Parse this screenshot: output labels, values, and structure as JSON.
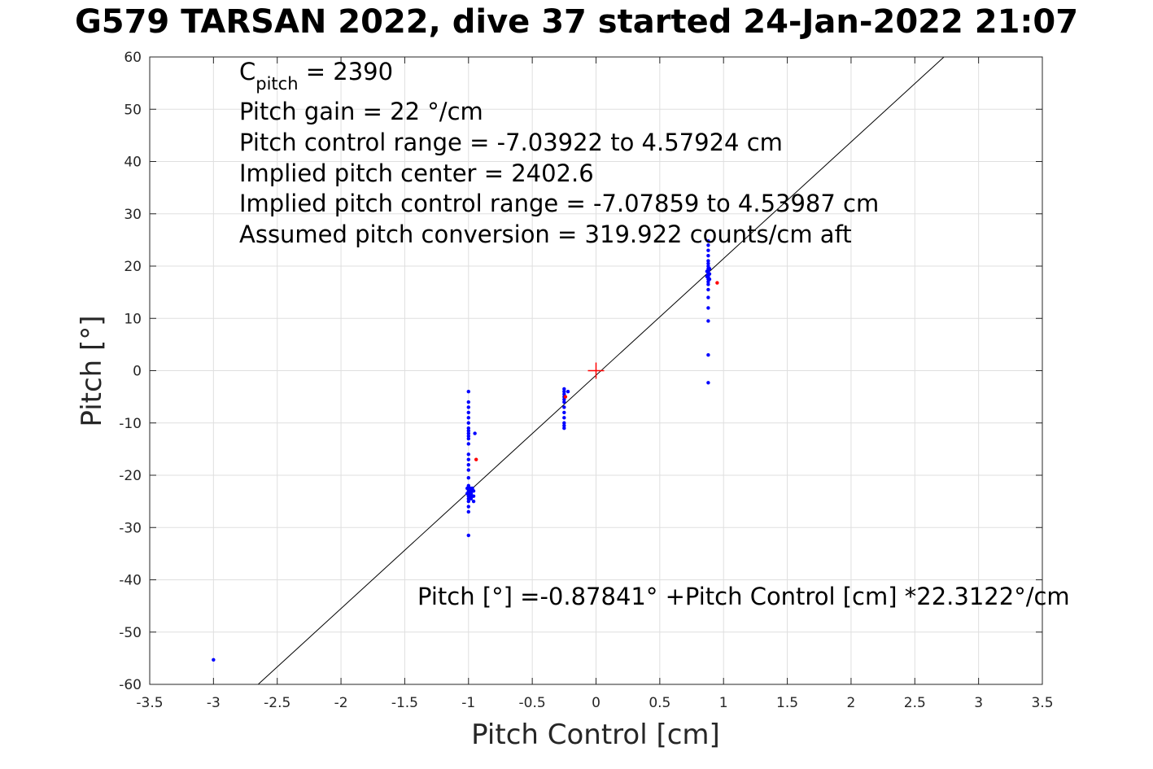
{
  "chart_data": {
    "type": "scatter",
    "title": "G579 TARSAN 2022, dive 37 started 24-Jan-2022 21:07",
    "xlabel": "Pitch Control [cm]",
    "ylabel": "Pitch [°]",
    "xlim": [
      -3.5,
      3.5
    ],
    "ylim": [
      -60,
      60
    ],
    "xticks": [
      -3.5,
      -3,
      -2.5,
      -2,
      -1.5,
      -1,
      -0.5,
      0,
      0.5,
      1,
      1.5,
      2,
      2.5,
      3,
      3.5
    ],
    "xtick_labels": [
      "-3.5",
      "-3",
      "-2.5",
      "-2",
      "-1.5",
      "-1",
      "-0.5",
      "0",
      "0.5",
      "1",
      "1.5",
      "2",
      "2.5",
      "3",
      "3.5"
    ],
    "yticks": [
      -60,
      -50,
      -40,
      -30,
      -20,
      -10,
      0,
      10,
      20,
      30,
      40,
      50,
      60
    ],
    "ytick_labels": [
      "-60",
      "-50",
      "-40",
      "-30",
      "-20",
      "-10",
      "0",
      "10",
      "20",
      "30",
      "40",
      "50",
      "60"
    ],
    "grid": true,
    "fit_line": {
      "intercept": -0.87841,
      "slope": 22.3122
    },
    "center_marker": {
      "x": 0,
      "y": 0
    },
    "series": [
      {
        "color": "#0000ff",
        "points": [
          [
            -3.0,
            -55.3
          ],
          [
            -1.0,
            -31.5
          ],
          [
            -1.0,
            -27
          ],
          [
            -1.0,
            -26
          ],
          [
            -1.0,
            -25
          ],
          [
            -1.0,
            -24.5
          ],
          [
            -1.0,
            -24
          ],
          [
            -1.0,
            -23.5
          ],
          [
            -1.0,
            -23
          ],
          [
            -1.0,
            -22.5
          ],
          [
            -1.0,
            -22
          ],
          [
            -1.0,
            -20.5
          ],
          [
            -1.0,
            -19
          ],
          [
            -1.0,
            -18
          ],
          [
            -1.0,
            -17
          ],
          [
            -1.0,
            -16
          ],
          [
            -1.0,
            -14
          ],
          [
            -1.0,
            -13
          ],
          [
            -1.0,
            -12.5
          ],
          [
            -1.0,
            -12
          ],
          [
            -1.0,
            -11.5
          ],
          [
            -1.0,
            -11
          ],
          [
            -1.0,
            -10
          ],
          [
            -1.0,
            -9
          ],
          [
            -1.0,
            -8
          ],
          [
            -1.0,
            -7
          ],
          [
            -1.0,
            -6
          ],
          [
            -1.0,
            -4
          ],
          [
            -0.99,
            -24
          ],
          [
            -0.99,
            -23
          ],
          [
            -0.99,
            -22.5
          ],
          [
            -0.98,
            -24.5
          ],
          [
            -0.98,
            -23.5
          ],
          [
            -0.98,
            -22.5
          ],
          [
            -0.97,
            -24
          ],
          [
            -0.97,
            -23
          ],
          [
            -0.97,
            -22.5
          ],
          [
            -0.96,
            -25
          ],
          [
            -0.96,
            -24
          ],
          [
            -0.96,
            -23
          ],
          [
            -0.95,
            -12
          ],
          [
            -1.01,
            -23.5
          ],
          [
            -1.01,
            -22.5
          ],
          [
            -0.25,
            -11
          ],
          [
            -0.25,
            -10.5
          ],
          [
            -0.25,
            -10
          ],
          [
            -0.25,
            -9
          ],
          [
            -0.25,
            -8
          ],
          [
            -0.25,
            -7
          ],
          [
            -0.25,
            -6
          ],
          [
            -0.25,
            -5.5
          ],
          [
            -0.25,
            -5
          ],
          [
            -0.25,
            -4.5
          ],
          [
            -0.25,
            -4
          ],
          [
            -0.25,
            -3.5
          ],
          [
            -0.22,
            -4
          ],
          [
            0.88,
            -2.3
          ],
          [
            0.88,
            3
          ],
          [
            0.88,
            9.5
          ],
          [
            0.88,
            12
          ],
          [
            0.88,
            14
          ],
          [
            0.88,
            15.5
          ],
          [
            0.88,
            16.5
          ],
          [
            0.88,
            17
          ],
          [
            0.88,
            17.5
          ],
          [
            0.88,
            18
          ],
          [
            0.88,
            18.5
          ],
          [
            0.88,
            19
          ],
          [
            0.88,
            19.5
          ],
          [
            0.88,
            20
          ],
          [
            0.88,
            20.5
          ],
          [
            0.88,
            21
          ],
          [
            0.88,
            22
          ],
          [
            0.88,
            23
          ],
          [
            0.88,
            24
          ],
          [
            0.88,
            24.8
          ],
          [
            0.89,
            17.5
          ],
          [
            0.89,
            18.5
          ],
          [
            0.89,
            19.5
          ],
          [
            0.87,
            18
          ],
          [
            0.87,
            19
          ]
        ]
      },
      {
        "color": "#ff0000",
        "points": [
          [
            -0.94,
            -17
          ],
          [
            -0.24,
            -5
          ],
          [
            0.95,
            16.8
          ]
        ]
      }
    ]
  },
  "annotations": {
    "cpitch_main": "C",
    "cpitch_sub": "pitch",
    "cpitch_value": " = 2390",
    "line2": "Pitch gain = 22 °/cm",
    "line3": "Pitch control range = -7.03922 to 4.57924 cm",
    "line4": "Implied pitch center = 2402.6",
    "line5": "Implied pitch control range = -7.07859 to 4.53987 cm",
    "line6": "Assumed pitch conversion = 319.922 counts/cm aft",
    "fit_equation": "Pitch [°] =-0.87841° +Pitch Control [cm] *22.3122°/cm"
  }
}
